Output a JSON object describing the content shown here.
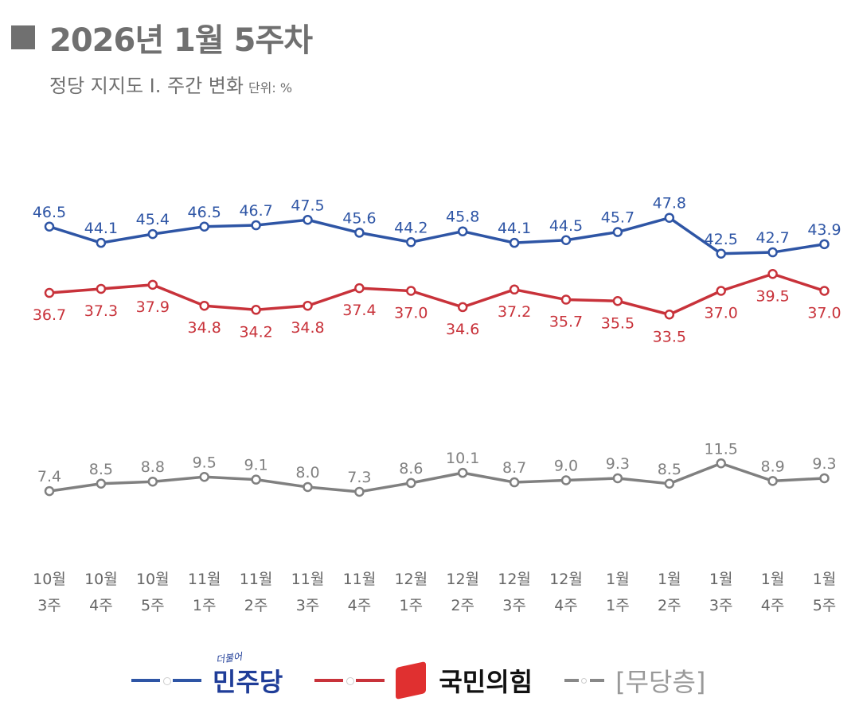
{
  "header": {
    "title": "2026년 1월 5주차",
    "subtitle": "정당 지지도 Ⅰ. 주간 변화",
    "unit": "단위: %"
  },
  "chart_data": {
    "type": "line",
    "title": "2026년 1월 5주차",
    "subtitle": "정당 지지도 Ⅰ. 주간 변화",
    "unit": "%",
    "categories": [
      [
        "10월",
        "3주"
      ],
      [
        "10월",
        "4주"
      ],
      [
        "10월",
        "5주"
      ],
      [
        "11월",
        "1주"
      ],
      [
        "11월",
        "2주"
      ],
      [
        "11월",
        "3주"
      ],
      [
        "11월",
        "4주"
      ],
      [
        "12월",
        "1주"
      ],
      [
        "12월",
        "2주"
      ],
      [
        "12월",
        "3주"
      ],
      [
        "12월",
        "4주"
      ],
      [
        "1월",
        "1주"
      ],
      [
        "1월",
        "2주"
      ],
      [
        "1월",
        "3주"
      ],
      [
        "1월",
        "4주"
      ],
      [
        "1월",
        "5주"
      ]
    ],
    "series": [
      {
        "name": "민주당",
        "color": "#2e55a5",
        "label_pos": "above",
        "values": [
          46.5,
          44.1,
          45.4,
          46.5,
          46.7,
          47.5,
          45.6,
          44.2,
          45.8,
          44.1,
          44.5,
          45.7,
          47.8,
          42.5,
          42.7,
          43.9
        ]
      },
      {
        "name": "국민의힘",
        "color": "#c8323a",
        "label_pos": "below",
        "values": [
          36.7,
          37.3,
          37.9,
          34.8,
          34.2,
          34.8,
          37.4,
          37.0,
          34.6,
          37.2,
          35.7,
          35.5,
          33.5,
          37.0,
          39.5,
          37.0
        ]
      },
      {
        "name": "[무당층]",
        "color": "#808080",
        "label_pos": "above",
        "values": [
          7.4,
          8.5,
          8.8,
          9.5,
          9.1,
          8.0,
          7.3,
          8.6,
          10.1,
          8.7,
          9.0,
          9.3,
          8.5,
          11.5,
          8.9,
          9.3
        ]
      }
    ],
    "legend": "bottom",
    "grid": false,
    "legend_extra": "더불어"
  }
}
